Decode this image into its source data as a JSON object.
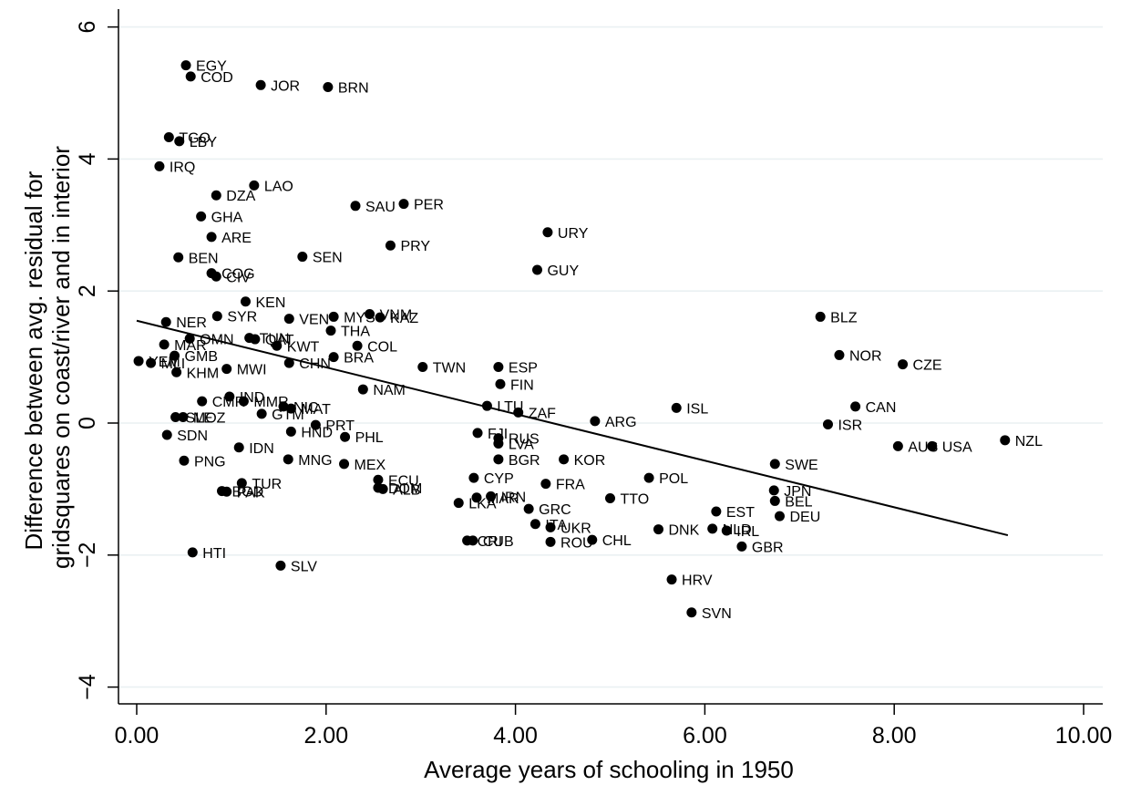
{
  "chart_data": {
    "type": "scatter",
    "xlabel": "Average years of schooling in 1950",
    "ylabel_lines": [
      "Difference between avg. residual for",
      "gridsquares on coast/river and in interior"
    ],
    "xlim": [
      -0.1,
      10.2
    ],
    "ylim": [
      -4.5,
      6.3
    ],
    "xticks": [
      0,
      2,
      4,
      6,
      8,
      10
    ],
    "xtick_labels": [
      "0.00",
      "2.00",
      "4.00",
      "6.00",
      "8.00",
      "10.00"
    ],
    "yticks": [
      -4,
      -2,
      0,
      2,
      4,
      6
    ],
    "ytick_labels": [
      "−4",
      "−2",
      "0",
      "2",
      "4",
      "6"
    ],
    "grid": "horizontal",
    "fit_line": {
      "x": [
        0.0,
        9.2
      ],
      "y": [
        1.55,
        -1.7
      ]
    },
    "points": [
      {
        "label": "EGY",
        "x": 0.52,
        "y": 5.42
      },
      {
        "label": "COD",
        "x": 0.57,
        "y": 5.25
      },
      {
        "label": "JOR",
        "x": 1.31,
        "y": 5.12
      },
      {
        "label": "BRN",
        "x": 2.02,
        "y": 5.09
      },
      {
        "label": "TGO",
        "x": 0.34,
        "y": 4.33
      },
      {
        "label": "LBY",
        "x": 0.45,
        "y": 4.27
      },
      {
        "label": "IRQ",
        "x": 0.24,
        "y": 3.89
      },
      {
        "label": "LAO",
        "x": 1.24,
        "y": 3.6
      },
      {
        "label": "DZA",
        "x": 0.84,
        "y": 3.45
      },
      {
        "label": "PER",
        "x": 2.82,
        "y": 3.32
      },
      {
        "label": "SAU",
        "x": 2.31,
        "y": 3.29
      },
      {
        "label": "GHA",
        "x": 0.68,
        "y": 3.13
      },
      {
        "label": "URY",
        "x": 4.34,
        "y": 2.89
      },
      {
        "label": "ARE",
        "x": 0.79,
        "y": 2.82
      },
      {
        "label": "PRY",
        "x": 2.68,
        "y": 2.69
      },
      {
        "label": "BEN",
        "x": 0.44,
        "y": 2.51
      },
      {
        "label": "SEN",
        "x": 1.75,
        "y": 2.52
      },
      {
        "label": "GUY",
        "x": 4.23,
        "y": 2.32
      },
      {
        "label": "COG",
        "x": 0.79,
        "y": 2.27
      },
      {
        "label": "CIV",
        "x": 0.84,
        "y": 2.22
      },
      {
        "label": "KEN",
        "x": 1.15,
        "y": 1.84
      },
      {
        "label": "BLZ",
        "x": 7.22,
        "y": 1.61
      },
      {
        "label": "SYR",
        "x": 0.85,
        "y": 1.62
      },
      {
        "label": "VNM",
        "x": 2.46,
        "y": 1.65
      },
      {
        "label": "KAZ",
        "x": 2.57,
        "y": 1.6
      },
      {
        "label": "MYS",
        "x": 2.08,
        "y": 1.61
      },
      {
        "label": "VEN",
        "x": 1.61,
        "y": 1.58
      },
      {
        "label": "NER",
        "x": 0.31,
        "y": 1.53
      },
      {
        "label": "THA",
        "x": 2.05,
        "y": 1.4
      },
      {
        "label": "TUN",
        "x": 1.19,
        "y": 1.29
      },
      {
        "label": "QAT",
        "x": 1.25,
        "y": 1.27
      },
      {
        "label": "OMN",
        "x": 0.56,
        "y": 1.28
      },
      {
        "label": "MAR",
        "x": 0.29,
        "y": 1.19
      },
      {
        "label": "KWT",
        "x": 1.48,
        "y": 1.17
      },
      {
        "label": "COL",
        "x": 2.33,
        "y": 1.17
      },
      {
        "label": "NOR",
        "x": 7.42,
        "y": 1.03
      },
      {
        "label": "GMB",
        "x": 0.4,
        "y": 1.02
      },
      {
        "label": "BRA",
        "x": 2.08,
        "y": 1.0
      },
      {
        "label": "YEM",
        "x": 0.02,
        "y": 0.94
      },
      {
        "label": "MLI",
        "x": 0.15,
        "y": 0.91
      },
      {
        "label": "CHN",
        "x": 1.61,
        "y": 0.91
      },
      {
        "label": "CZE",
        "x": 8.09,
        "y": 0.89
      },
      {
        "label": "TWN",
        "x": 3.02,
        "y": 0.85
      },
      {
        "label": "ESP",
        "x": 3.82,
        "y": 0.85
      },
      {
        "label": "MWI",
        "x": 0.95,
        "y": 0.82
      },
      {
        "label": "KHM",
        "x": 0.42,
        "y": 0.77
      },
      {
        "label": "FIN",
        "x": 3.84,
        "y": 0.59
      },
      {
        "label": "NAM",
        "x": 2.39,
        "y": 0.51
      },
      {
        "label": "IND",
        "x": 0.98,
        "y": 0.4
      },
      {
        "label": "CMR",
        "x": 0.69,
        "y": 0.33
      },
      {
        "label": "MMR",
        "x": 1.13,
        "y": 0.33
      },
      {
        "label": "NIC",
        "x": 1.55,
        "y": 0.25
      },
      {
        "label": "LTU",
        "x": 3.7,
        "y": 0.26
      },
      {
        "label": "CAN",
        "x": 7.59,
        "y": 0.25
      },
      {
        "label": "ISL",
        "x": 5.7,
        "y": 0.23
      },
      {
        "label": "MAT",
        "x": 1.63,
        "y": 0.22
      },
      {
        "label": "GTM",
        "x": 1.32,
        "y": 0.14
      },
      {
        "label": "ZAF",
        "x": 4.03,
        "y": 0.16
      },
      {
        "label": "SLE",
        "x": 0.41,
        "y": 0.09
      },
      {
        "label": "MOZ",
        "x": 0.49,
        "y": 0.09
      },
      {
        "label": "ARG",
        "x": 4.84,
        "y": 0.03
      },
      {
        "label": "ISR",
        "x": 7.3,
        "y": -0.02
      },
      {
        "label": "PRT",
        "x": 1.89,
        "y": -0.03
      },
      {
        "label": "HND",
        "x": 1.63,
        "y": -0.13
      },
      {
        "label": "FJI",
        "x": 3.6,
        "y": -0.15
      },
      {
        "label": "SDN",
        "x": 0.32,
        "y": -0.18
      },
      {
        "label": "PHL",
        "x": 2.2,
        "y": -0.21
      },
      {
        "label": "RUS",
        "x": 3.82,
        "y": -0.23
      },
      {
        "label": "LVA",
        "x": 3.82,
        "y": -0.31
      },
      {
        "label": "NZL",
        "x": 9.17,
        "y": -0.26
      },
      {
        "label": "AUS",
        "x": 8.04,
        "y": -0.35
      },
      {
        "label": "USA",
        "x": 8.4,
        "y": -0.35
      },
      {
        "label": "IDN",
        "x": 1.08,
        "y": -0.37
      },
      {
        "label": "MNG",
        "x": 1.6,
        "y": -0.55
      },
      {
        "label": "BGR",
        "x": 3.82,
        "y": -0.55
      },
      {
        "label": "KOR",
        "x": 4.51,
        "y": -0.55
      },
      {
        "label": "PNG",
        "x": 0.5,
        "y": -0.57
      },
      {
        "label": "SWE",
        "x": 6.74,
        "y": -0.62
      },
      {
        "label": "MEX",
        "x": 2.19,
        "y": -0.62
      },
      {
        "label": "POL",
        "x": 5.41,
        "y": -0.83
      },
      {
        "label": "CYP",
        "x": 3.56,
        "y": -0.83
      },
      {
        "label": "ECU",
        "x": 2.55,
        "y": -0.86
      },
      {
        "label": "TUR",
        "x": 1.11,
        "y": -0.91
      },
      {
        "label": "FRA",
        "x": 4.32,
        "y": -0.92
      },
      {
        "label": "DOM",
        "x": 2.55,
        "y": -0.98
      },
      {
        "label": "ALB",
        "x": 2.6,
        "y": -1.0
      },
      {
        "label": "JPN",
        "x": 6.73,
        "y": -1.02
      },
      {
        "label": "PAK",
        "x": 0.95,
        "y": -1.04
      },
      {
        "label": "BGD",
        "x": 0.9,
        "y": -1.03
      },
      {
        "label": "IRN",
        "x": 3.74,
        "y": -1.11
      },
      {
        "label": "TTO",
        "x": 5.0,
        "y": -1.14
      },
      {
        "label": "MAR",
        "x": 3.59,
        "y": -1.13
      },
      {
        "label": "BEL",
        "x": 6.74,
        "y": -1.18
      },
      {
        "label": "LKA",
        "x": 3.4,
        "y": -1.21
      },
      {
        "label": "GRC",
        "x": 4.14,
        "y": -1.3
      },
      {
        "label": "EST",
        "x": 6.12,
        "y": -1.34
      },
      {
        "label": "DEU",
        "x": 6.79,
        "y": -1.41
      },
      {
        "label": "ITA",
        "x": 4.21,
        "y": -1.53
      },
      {
        "label": "UKR",
        "x": 4.37,
        "y": -1.58
      },
      {
        "label": "DNK",
        "x": 5.51,
        "y": -1.61
      },
      {
        "label": "NLD",
        "x": 6.08,
        "y": -1.6
      },
      {
        "label": "IRL",
        "x": 6.23,
        "y": -1.63
      },
      {
        "label": "CHL",
        "x": 4.81,
        "y": -1.77
      },
      {
        "label": "CRI",
        "x": 3.49,
        "y": -1.78
      },
      {
        "label": "CUB",
        "x": 3.55,
        "y": -1.78
      },
      {
        "label": "ROU",
        "x": 4.37,
        "y": -1.8
      },
      {
        "label": "GBR",
        "x": 6.39,
        "y": -1.87
      },
      {
        "label": "HTI",
        "x": 0.59,
        "y": -1.96
      },
      {
        "label": "SLV",
        "x": 1.52,
        "y": -2.16
      },
      {
        "label": "HRV",
        "x": 5.65,
        "y": -2.37
      },
      {
        "label": "SVN",
        "x": 5.86,
        "y": -2.87
      }
    ]
  }
}
